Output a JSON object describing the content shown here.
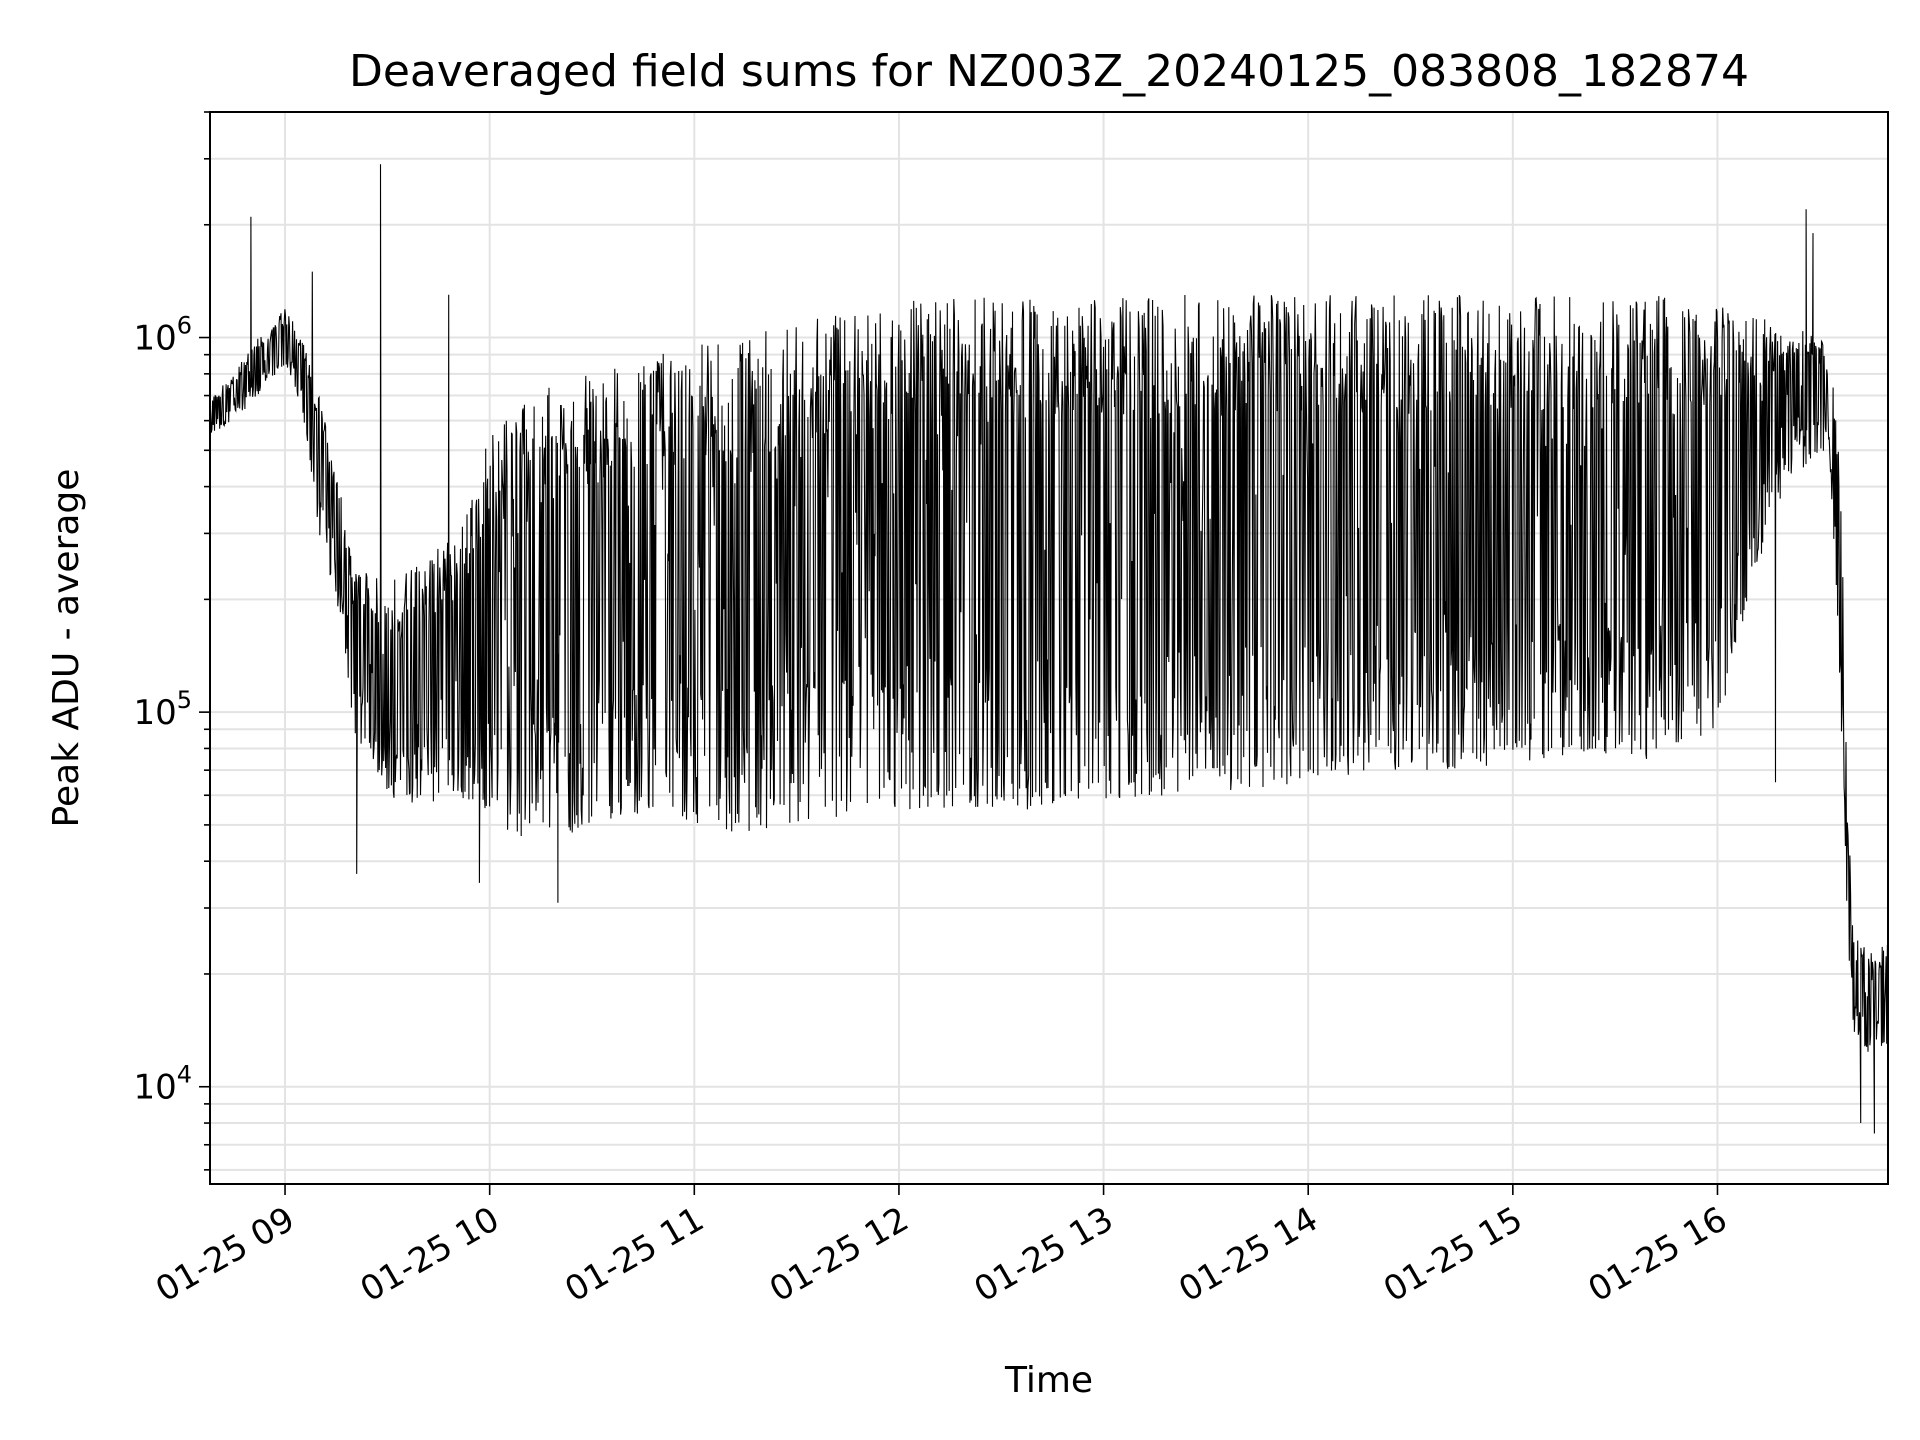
{
  "chart_data": {
    "type": "line",
    "title": "Deaveraged field sums for NZ003Z_20240125_083808_182874",
    "xlabel": "Time",
    "ylabel": "Peak ADU - average",
    "yscale": "log",
    "ylim": [
      5500,
      4000000
    ],
    "xlim": [
      "2024-01-25 08:38",
      "2024-01-25 16:50"
    ],
    "grid": true,
    "x_ticks": [
      {
        "time": "2024-01-25 09:00",
        "label": "01-25 09"
      },
      {
        "time": "2024-01-25 10:00",
        "label": "01-25 10"
      },
      {
        "time": "2024-01-25 11:00",
        "label": "01-25 11"
      },
      {
        "time": "2024-01-25 12:00",
        "label": "01-25 12"
      },
      {
        "time": "2024-01-25 13:00",
        "label": "01-25 13"
      },
      {
        "time": "2024-01-25 14:00",
        "label": "01-25 14"
      },
      {
        "time": "2024-01-25 15:00",
        "label": "01-25 15"
      },
      {
        "time": "2024-01-25 16:00",
        "label": "01-25 16"
      }
    ],
    "y_ticks": [
      {
        "value": 10000,
        "base": "10",
        "exp": "4"
      },
      {
        "value": 100000,
        "base": "10",
        "exp": "5"
      },
      {
        "value": 1000000,
        "base": "10",
        "exp": "6"
      }
    ],
    "envelope": {
      "description_times": "piecewise envelope of the dense signal, times in 2024-01-25 local clock",
      "t": [
        "08:38",
        "08:45",
        "08:52",
        "09:00",
        "09:05",
        "09:10",
        "09:15",
        "09:20",
        "09:30",
        "09:40",
        "09:50",
        "10:00",
        "10:10",
        "10:20",
        "10:30",
        "10:40",
        "10:50",
        "11:00",
        "11:10",
        "11:20",
        "11:30",
        "11:40",
        "11:50",
        "12:00",
        "12:20",
        "12:40",
        "13:00",
        "13:20",
        "13:40",
        "14:00",
        "14:20",
        "14:40",
        "15:00",
        "15:20",
        "15:40",
        "16:00",
        "16:10",
        "16:20",
        "16:30",
        "16:33",
        "16:35",
        "16:37",
        "16:38",
        "16:40",
        "16:45",
        "16:50"
      ],
      "high": [
        700000,
        800000,
        1000000,
        1200000,
        1000000,
        700000,
        450000,
        250000,
        220000,
        250000,
        300000,
        550000,
        700000,
        750000,
        800000,
        850000,
        900000,
        950000,
        1000000,
        1050000,
        1100000,
        1150000,
        1200000,
        1250000,
        1280000,
        1280000,
        1300000,
        1300000,
        1300000,
        1300000,
        1300000,
        1300000,
        1300000,
        1300000,
        1300000,
        1250000,
        1200000,
        1000000,
        1100000,
        900000,
        600000,
        250000,
        60000,
        25000,
        24000,
        24000
      ],
      "low": [
        550000,
        600000,
        700000,
        850000,
        650000,
        300000,
        200000,
        90000,
        60000,
        55000,
        60000,
        50000,
        45000,
        45000,
        50000,
        52000,
        55000,
        50000,
        48000,
        48000,
        50000,
        52000,
        55000,
        55000,
        55000,
        55000,
        58000,
        60000,
        62000,
        65000,
        68000,
        70000,
        72000,
        75000,
        75000,
        90000,
        220000,
        400000,
        500000,
        450000,
        200000,
        60000,
        25000,
        14000,
        12000,
        13000
      ]
    },
    "spikes": [
      {
        "t": "08:50",
        "value": 2100000
      },
      {
        "t": "09:08",
        "value": 1500000
      },
      {
        "t": "09:28",
        "value": 2900000
      },
      {
        "t": "09:48",
        "value": 1300000
      },
      {
        "t": "09:21",
        "value": 37000
      },
      {
        "t": "10:20",
        "value": 31000
      },
      {
        "t": "09:57",
        "value": 35000
      },
      {
        "t": "16:26",
        "value": 2200000
      },
      {
        "t": "16:28",
        "value": 1900000
      },
      {
        "t": "16:17",
        "value": 65000
      },
      {
        "t": "16:42",
        "value": 8000
      },
      {
        "t": "16:46",
        "value": 7500
      }
    ]
  }
}
